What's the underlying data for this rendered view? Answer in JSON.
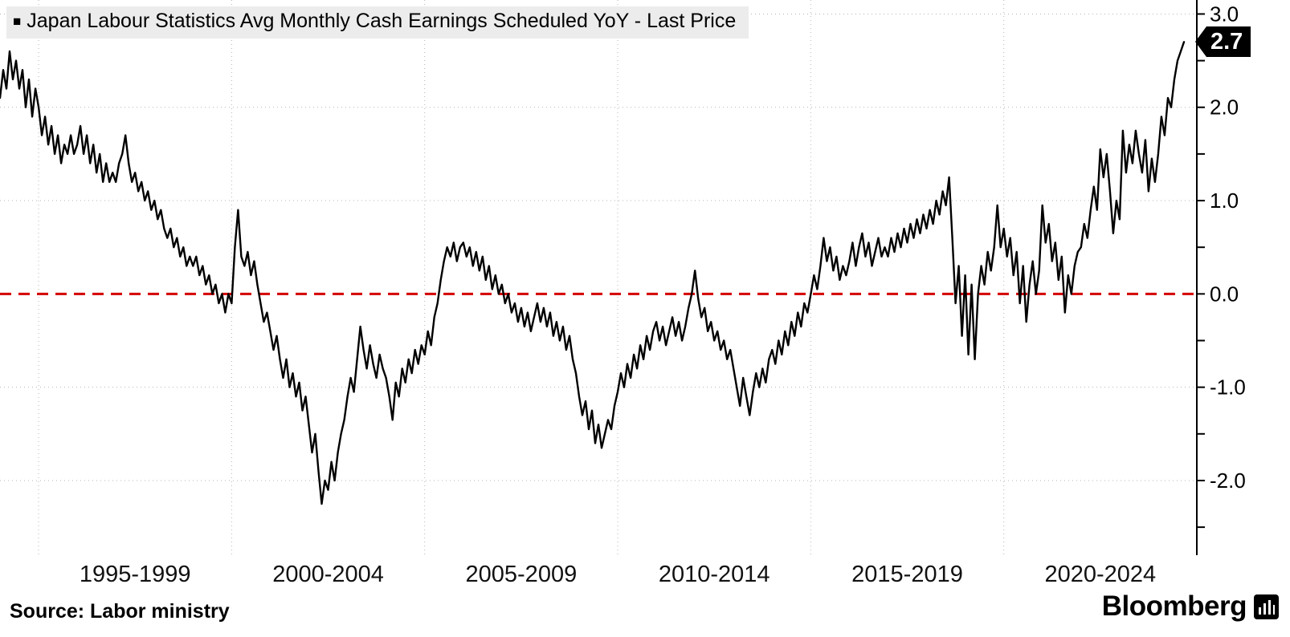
{
  "legend": {
    "marker": "■",
    "label": "Japan Labour Statistics Avg Monthly Cash Earnings Scheduled YoY - Last Price"
  },
  "source": {
    "text": "Source: Labor ministry"
  },
  "brand": {
    "name": "Bloomberg"
  },
  "chart_data": {
    "type": "line",
    "title": "Japan Labour Statistics Avg Monthly Cash Earnings Scheduled YoY - Last Price",
    "series_name": "Avg Monthly Cash Earnings Scheduled YoY (%)",
    "frequency": "monthly",
    "start_year": 1994,
    "xlim": [
      1994,
      2025
    ],
    "ylim": [
      -2.8,
      3.15
    ],
    "y_ticks_major": [
      3.0,
      2.0,
      1.0,
      0.0,
      -1.0,
      -2.0
    ],
    "y_tick_minor_step": 0.5,
    "x_gridline_years": [
      1995,
      2000,
      2005,
      2010,
      2015,
      2020,
      2025
    ],
    "x_tick_labels": [
      {
        "label": "1995-1999",
        "center_year": 1997.5
      },
      {
        "label": "2000-2004",
        "center_year": 2002.5
      },
      {
        "label": "2005-2009",
        "center_year": 2007.5
      },
      {
        "label": "2010-2014",
        "center_year": 2012.5
      },
      {
        "label": "2015-2019",
        "center_year": 2017.5
      },
      {
        "label": "2020-2024",
        "center_year": 2022.5
      }
    ],
    "grid": "dotted",
    "legend_position": "top-left",
    "line_color": "#000000",
    "zero_line_color": "#d40000",
    "last_price": 2.7,
    "last_price_label": "2.7",
    "values": [
      2.1,
      2.4,
      2.2,
      2.6,
      2.3,
      2.5,
      2.2,
      2.4,
      2.0,
      2.3,
      1.9,
      2.2,
      2.0,
      1.7,
      1.9,
      1.6,
      1.8,
      1.5,
      1.7,
      1.4,
      1.6,
      1.5,
      1.7,
      1.5,
      1.6,
      1.8,
      1.5,
      1.7,
      1.4,
      1.6,
      1.3,
      1.5,
      1.2,
      1.4,
      1.2,
      1.3,
      1.2,
      1.4,
      1.5,
      1.7,
      1.4,
      1.2,
      1.3,
      1.1,
      1.2,
      1.0,
      1.1,
      0.9,
      1.0,
      0.8,
      0.9,
      0.7,
      0.6,
      0.7,
      0.5,
      0.6,
      0.4,
      0.5,
      0.3,
      0.4,
      0.3,
      0.4,
      0.2,
      0.3,
      0.1,
      0.2,
      0.0,
      0.1,
      -0.1,
      0.0,
      -0.2,
      0.0,
      -0.1,
      0.5,
      0.9,
      0.4,
      0.3,
      0.45,
      0.2,
      0.35,
      0.1,
      -0.1,
      -0.3,
      -0.2,
      -0.4,
      -0.6,
      -0.45,
      -0.7,
      -0.9,
      -0.7,
      -1.0,
      -0.85,
      -1.1,
      -0.95,
      -1.25,
      -1.1,
      -1.4,
      -1.7,
      -1.5,
      -1.9,
      -2.25,
      -2.0,
      -2.1,
      -1.8,
      -2.0,
      -1.7,
      -1.5,
      -1.35,
      -1.1,
      -0.9,
      -1.05,
      -0.7,
      -0.35,
      -0.6,
      -0.8,
      -0.55,
      -0.75,
      -0.9,
      -0.65,
      -0.8,
      -0.9,
      -1.1,
      -1.35,
      -0.95,
      -1.1,
      -0.8,
      -0.95,
      -0.7,
      -0.85,
      -0.6,
      -0.75,
      -0.55,
      -0.65,
      -0.4,
      -0.55,
      -0.25,
      -0.1,
      0.15,
      0.35,
      0.5,
      0.4,
      0.55,
      0.35,
      0.5,
      0.55,
      0.4,
      0.5,
      0.3,
      0.45,
      0.25,
      0.4,
      0.15,
      0.3,
      0.05,
      0.2,
      0.0,
      0.1,
      -0.1,
      0.0,
      -0.2,
      -0.1,
      -0.3,
      -0.15,
      -0.35,
      -0.2,
      -0.4,
      -0.25,
      -0.1,
      -0.3,
      -0.15,
      -0.35,
      -0.2,
      -0.45,
      -0.3,
      -0.5,
      -0.35,
      -0.6,
      -0.45,
      -0.7,
      -0.85,
      -1.1,
      -1.3,
      -1.15,
      -1.45,
      -1.25,
      -1.6,
      -1.4,
      -1.65,
      -1.5,
      -1.35,
      -1.45,
      -1.2,
      -1.05,
      -0.85,
      -1.0,
      -0.75,
      -0.9,
      -0.65,
      -0.8,
      -0.55,
      -0.7,
      -0.45,
      -0.6,
      -0.4,
      -0.3,
      -0.5,
      -0.35,
      -0.55,
      -0.4,
      -0.25,
      -0.45,
      -0.3,
      -0.5,
      -0.35,
      -0.15,
      0.0,
      0.25,
      -0.05,
      -0.25,
      -0.15,
      -0.4,
      -0.3,
      -0.5,
      -0.4,
      -0.6,
      -0.5,
      -0.7,
      -0.6,
      -0.8,
      -1.0,
      -1.2,
      -0.9,
      -1.1,
      -1.3,
      -1.05,
      -0.85,
      -1.0,
      -0.8,
      -0.95,
      -0.7,
      -0.6,
      -0.75,
      -0.5,
      -0.65,
      -0.4,
      -0.55,
      -0.3,
      -0.45,
      -0.2,
      -0.35,
      -0.1,
      -0.2,
      0.0,
      0.2,
      0.05,
      0.3,
      0.6,
      0.35,
      0.5,
      0.25,
      0.4,
      0.15,
      0.3,
      0.2,
      0.35,
      0.55,
      0.3,
      0.5,
      0.65,
      0.4,
      0.55,
      0.3,
      0.45,
      0.6,
      0.4,
      0.5,
      0.4,
      0.6,
      0.45,
      0.65,
      0.5,
      0.7,
      0.55,
      0.75,
      0.6,
      0.8,
      0.65,
      0.85,
      0.7,
      0.9,
      0.75,
      1.0,
      0.85,
      1.1,
      0.95,
      1.25,
      0.6,
      -0.1,
      0.3,
      -0.45,
      0.2,
      -0.65,
      0.1,
      -0.7,
      0.0,
      0.3,
      0.1,
      0.45,
      0.25,
      0.5,
      0.95,
      0.5,
      0.7,
      0.4,
      0.6,
      0.2,
      0.45,
      -0.1,
      0.3,
      -0.3,
      0.1,
      0.35,
      0.0,
      0.25,
      0.95,
      0.55,
      0.75,
      0.35,
      0.55,
      0.15,
      0.4,
      -0.2,
      0.2,
      0.0,
      0.3,
      0.45,
      0.5,
      0.75,
      0.6,
      0.9,
      1.15,
      0.9,
      1.55,
      1.25,
      1.5,
      1.1,
      0.65,
      1.0,
      0.8,
      1.75,
      1.3,
      1.6,
      1.4,
      1.75,
      1.5,
      1.3,
      1.65,
      1.1,
      1.45,
      1.2,
      1.5,
      1.9,
      1.7,
      2.1,
      2.0,
      2.3,
      2.5,
      2.6,
      2.7
    ]
  }
}
